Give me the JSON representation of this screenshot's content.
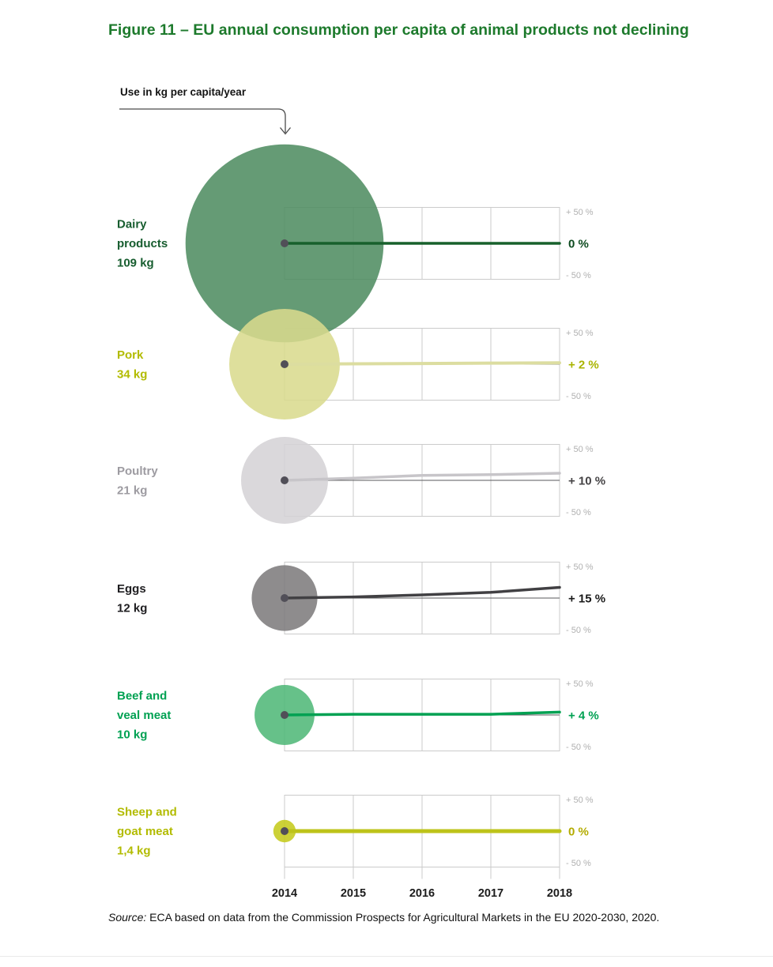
{
  "figure": {
    "title": "Figure 11 – EU annual consumption per capita of animal products not declining",
    "title_color": "#1d7a2c",
    "annotation_label": "Use in kg per capita/year",
    "source_prefix": "Source:",
    "source_text": "ECA based on data from the Commission Prospects for Agricultural Markets in the EU 2020-2030, 2020."
  },
  "chart_data": {
    "type": "line",
    "subtype": "bubble-plus-trend-lines",
    "x": [
      2014,
      2015,
      2016,
      2017,
      2018
    ],
    "x_axis_labels": [
      "2014",
      "2015",
      "2016",
      "2017",
      "2018"
    ],
    "ylim": [
      -50,
      50
    ],
    "y_tick_top_label": "+ 50 %",
    "y_tick_bottom_label": "- 50 %",
    "grid": true,
    "legend_position": "none",
    "value_labels_position": "right",
    "bubble_value_unit": "kg per capita/year",
    "series": [
      {
        "name": "Dairy products",
        "label_lines": [
          "Dairy",
          "products",
          "109 kg"
        ],
        "consumption_kg": 109,
        "change_label": "0 %",
        "values_pct": [
          0,
          0,
          0,
          0,
          0
        ],
        "bubble_color": "#4e8c61",
        "line_color": "#17602c",
        "label_color": "#175d2f",
        "value_color": "#0d4a1f",
        "line_width": 3.5
      },
      {
        "name": "Pork",
        "label_lines": [
          "Pork",
          "34 kg"
        ],
        "consumption_kg": 34,
        "change_label": "+ 2 %",
        "values_pct": [
          0,
          0.5,
          1,
          1.5,
          2
        ],
        "bubble_color": "#d9da8d",
        "line_color": "#dcdda0",
        "label_color": "#b2bb00",
        "value_color": "#a9b400",
        "line_width": 4
      },
      {
        "name": "Poultry",
        "label_lines": [
          "Poultry",
          "21 kg"
        ],
        "consumption_kg": 21,
        "change_label": "+ 10 %",
        "values_pct": [
          0,
          3,
          7,
          8,
          10
        ],
        "bubble_color": "#d4d2d6",
        "line_color": "#c7c5c9",
        "label_color": "#9d9ba1",
        "value_color": "#454345",
        "line_width": 3.5
      },
      {
        "name": "Eggs",
        "label_lines": [
          "Eggs",
          "12 kg"
        ],
        "consumption_kg": 12,
        "change_label": "+ 15 %",
        "values_pct": [
          0,
          1.5,
          4.5,
          8,
          15
        ],
        "bubble_color": "#7d7b7c",
        "line_color": "#414043",
        "label_color": "#1f1e21",
        "value_color": "#1a1a1a",
        "line_width": 3.5
      },
      {
        "name": "Beef and veal meat",
        "label_lines": [
          "Beef and",
          "veal meat",
          "10 kg"
        ],
        "consumption_kg": 10,
        "change_label": "+ 4 %",
        "values_pct": [
          0,
          1,
          1,
          1,
          4
        ],
        "bubble_color": "#4fb878",
        "line_color": "#00a152",
        "label_color": "#00a152",
        "value_color": "#00a152",
        "line_width": 3.5
      },
      {
        "name": "Sheep and goat meat",
        "label_lines": [
          "Sheep and",
          "goat meat",
          "1,4 kg"
        ],
        "consumption_kg": 1.4,
        "change_label": "0 %",
        "values_pct": [
          0,
          0,
          0,
          0,
          0
        ],
        "bubble_color": "#c4ca1a",
        "line_color": "#bdc31a",
        "label_color": "#b2bb00",
        "value_color": "#b3ab00",
        "line_width": 5
      }
    ]
  }
}
